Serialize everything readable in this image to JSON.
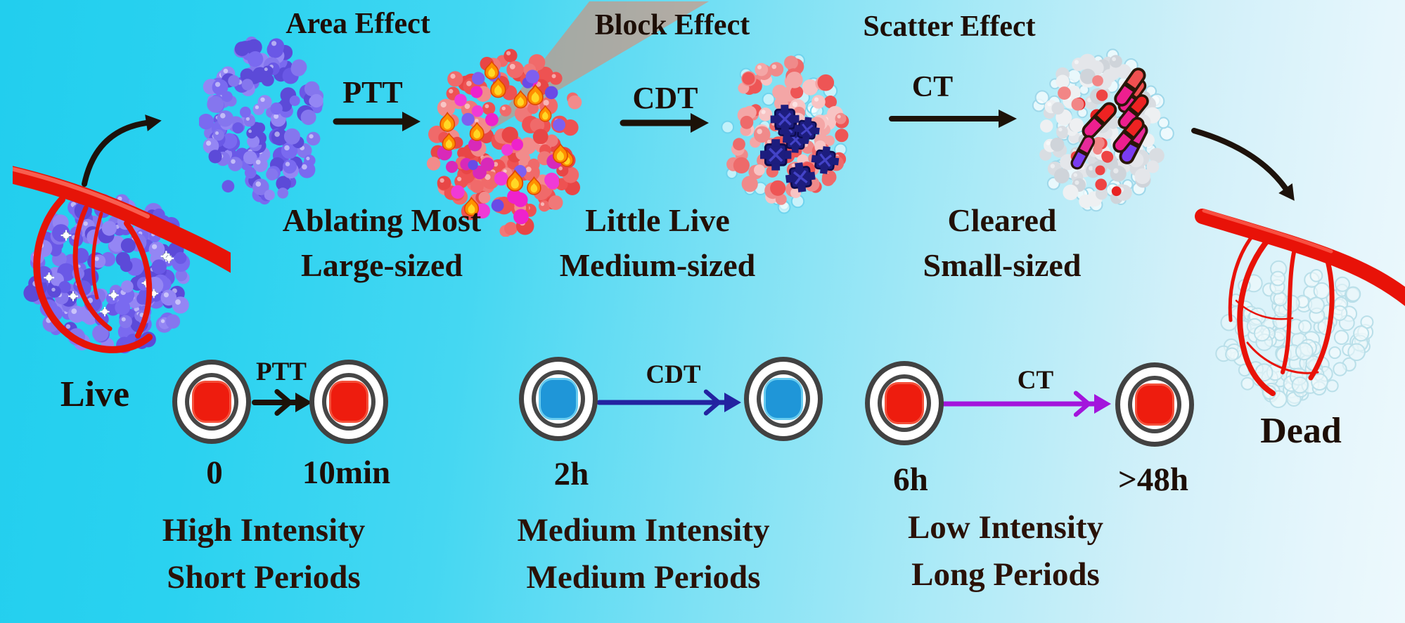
{
  "titles": {
    "area": "Area Effect",
    "block": "Block Effect",
    "scatter": "Scatter Effect"
  },
  "process_arrows": {
    "ptt": "PTT",
    "cdt": "CDT",
    "ct": "CT"
  },
  "descriptions": {
    "area": {
      "line1": "Ablating Most",
      "line2": "Large-sized"
    },
    "block": {
      "line1": "Little Live",
      "line2": "Medium-sized"
    },
    "scatter": {
      "line1": "Cleared",
      "line2": "Small-sized"
    }
  },
  "states": {
    "live": "Live",
    "dead": "Dead"
  },
  "timeline": {
    "ptt": {
      "label": "PTT",
      "start": "0",
      "end": "10min",
      "desc1": "High Intensity",
      "desc2": "Short Periods"
    },
    "cdt": {
      "label": "CDT",
      "start": "2h",
      "desc1": "Medium Intensity",
      "desc2": "Medium Periods"
    },
    "ct": {
      "label": "CT",
      "start": "6h",
      "end": ">48h",
      "desc1": "Low Intensity",
      "desc2": "Long Periods"
    }
  },
  "icons": {
    "live_tumor": "purple-sphere-cluster-with-red-vessel",
    "large_tumor": "purple-sphere-cluster",
    "ptt_tumor": "heated-red-cluster-with-flames-and-laser-beam",
    "cdt_tumor": "pink-cluster-with-navy-blockers",
    "ct_tumor": "gray-cluster-with-drug-capsules",
    "dead_tumor": "pale-cluster-with-red-vessel-tree"
  },
  "colors": {
    "background_left": "#22ceee",
    "background_right": "#edf9fd",
    "text": "#1d0e06",
    "black_arrow": "#1c1208",
    "cdt_timeline_arrow": "#2323a0",
    "ct_timeline_arrow": "#a315dc",
    "cell_nucleus_red": "#ee1c0e",
    "cell_nucleus_blue": "#1f96d8",
    "laser_beam": "#f87a55",
    "vessel_red": "#e61408"
  }
}
